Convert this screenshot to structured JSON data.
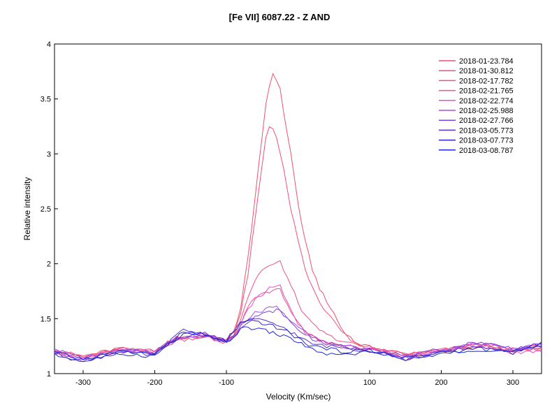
{
  "chart_data": {
    "type": "line",
    "title": "[Fe VII] 6087.22 - Z AND",
    "xlabel": "Velocity (Km/sec)",
    "ylabel": "Relative intensity",
    "xlim": [
      -340,
      340
    ],
    "ylim": [
      1,
      4
    ],
    "xticks": [
      -300,
      -200,
      -100,
      100,
      200,
      300
    ],
    "yticks": [
      1,
      1.5,
      2,
      2.5,
      3,
      3.5,
      4
    ],
    "ytick_labels": [
      "1",
      "1.5",
      "2",
      "2.5",
      "3",
      "3.5",
      "4"
    ],
    "legend_position": "top-right",
    "grid": false,
    "series": [
      {
        "name": "2018-01-23.784",
        "color": "#f0506e",
        "x": [
          -340,
          -300,
          -250,
          -200,
          -170,
          -130,
          -110,
          -100,
          -90,
          -80,
          -70,
          -60,
          -50,
          -45,
          -40,
          -35,
          -30,
          -25,
          -20,
          -10,
          0,
          10,
          20,
          30,
          40,
          50,
          60,
          80,
          100,
          120,
          150,
          200,
          250,
          300,
          340
        ],
        "y": [
          1.2,
          1.15,
          1.22,
          1.2,
          1.32,
          1.35,
          1.32,
          1.3,
          1.38,
          1.6,
          2.05,
          2.6,
          3.15,
          3.45,
          3.62,
          3.73,
          3.68,
          3.58,
          3.38,
          3.0,
          2.55,
          2.2,
          1.95,
          1.78,
          1.65,
          1.55,
          1.42,
          1.28,
          1.24,
          1.22,
          1.18,
          1.22,
          1.24,
          1.22,
          1.25
        ]
      },
      {
        "name": "2018-01-30.812",
        "color": "#f05078",
        "x": [
          -340,
          -300,
          -250,
          -200,
          -170,
          -130,
          -110,
          -100,
          -90,
          -80,
          -70,
          -60,
          -50,
          -45,
          -40,
          -35,
          -30,
          -25,
          -20,
          -10,
          0,
          10,
          20,
          30,
          40,
          50,
          60,
          80,
          100,
          120,
          150,
          200,
          250,
          300,
          340
        ],
        "y": [
          1.21,
          1.16,
          1.23,
          1.19,
          1.3,
          1.34,
          1.31,
          1.31,
          1.36,
          1.55,
          1.9,
          2.4,
          2.9,
          3.15,
          3.25,
          3.24,
          3.15,
          3.0,
          2.85,
          2.5,
          2.2,
          1.95,
          1.78,
          1.65,
          1.55,
          1.48,
          1.38,
          1.27,
          1.23,
          1.21,
          1.17,
          1.21,
          1.25,
          1.21,
          1.24
        ]
      },
      {
        "name": "2018-02-17.782",
        "color": "#f05082",
        "x": [
          -340,
          -300,
          -250,
          -200,
          -170,
          -130,
          -110,
          -100,
          -90,
          -80,
          -70,
          -60,
          -50,
          -40,
          -30,
          -25,
          -20,
          -10,
          0,
          10,
          20,
          30,
          40,
          60,
          80,
          100,
          120,
          150,
          200,
          250,
          300,
          340
        ],
        "y": [
          1.22,
          1.14,
          1.24,
          1.21,
          1.33,
          1.33,
          1.3,
          1.29,
          1.35,
          1.5,
          1.7,
          1.85,
          1.95,
          1.98,
          2.0,
          2.02,
          1.95,
          1.8,
          1.65,
          1.52,
          1.45,
          1.4,
          1.35,
          1.3,
          1.26,
          1.24,
          1.22,
          1.16,
          1.2,
          1.28,
          1.22,
          1.23
        ]
      },
      {
        "name": "2018-02-21.765",
        "color": "#f0508c",
        "x": [
          -340,
          -300,
          -250,
          -200,
          -170,
          -130,
          -110,
          -100,
          -90,
          -80,
          -70,
          -60,
          -50,
          -40,
          -30,
          -25,
          -20,
          -10,
          0,
          10,
          20,
          30,
          40,
          60,
          80,
          100,
          120,
          150,
          200,
          250,
          300,
          340
        ],
        "y": [
          1.19,
          1.15,
          1.21,
          1.18,
          1.31,
          1.36,
          1.29,
          1.28,
          1.34,
          1.45,
          1.6,
          1.7,
          1.72,
          1.75,
          1.78,
          1.77,
          1.7,
          1.55,
          1.45,
          1.38,
          1.34,
          1.3,
          1.28,
          1.26,
          1.24,
          1.23,
          1.21,
          1.15,
          1.22,
          1.26,
          1.2,
          1.22
        ]
      },
      {
        "name": "2018-02-22.774",
        "color": "#e650c8",
        "x": [
          -340,
          -300,
          -250,
          -200,
          -170,
          -130,
          -110,
          -100,
          -90,
          -80,
          -70,
          -60,
          -50,
          -40,
          -30,
          -25,
          -20,
          -10,
          0,
          10,
          20,
          30,
          40,
          60,
          80,
          100,
          120,
          150,
          200,
          250,
          300,
          340
        ],
        "y": [
          1.2,
          1.13,
          1.22,
          1.2,
          1.3,
          1.35,
          1.31,
          1.3,
          1.33,
          1.45,
          1.58,
          1.68,
          1.72,
          1.78,
          1.8,
          1.81,
          1.72,
          1.58,
          1.48,
          1.4,
          1.34,
          1.3,
          1.27,
          1.25,
          1.23,
          1.22,
          1.2,
          1.14,
          1.21,
          1.27,
          1.19,
          1.21
        ]
      },
      {
        "name": "2018-02-25.988",
        "color": "#a050e6",
        "x": [
          -340,
          -300,
          -250,
          -200,
          -170,
          -130,
          -110,
          -100,
          -90,
          -80,
          -70,
          -60,
          -50,
          -40,
          -30,
          -20,
          -10,
          0,
          10,
          20,
          30,
          40,
          60,
          80,
          100,
          120,
          150,
          200,
          250,
          300,
          340
        ],
        "y": [
          1.21,
          1.12,
          1.2,
          1.19,
          1.32,
          1.34,
          1.3,
          1.29,
          1.33,
          1.42,
          1.5,
          1.55,
          1.57,
          1.6,
          1.6,
          1.55,
          1.48,
          1.42,
          1.38,
          1.34,
          1.3,
          1.28,
          1.26,
          1.24,
          1.22,
          1.21,
          1.15,
          1.2,
          1.28,
          1.22,
          1.27
        ]
      },
      {
        "name": "2018-02-27.766",
        "color": "#8040dc",
        "x": [
          -340,
          -300,
          -250,
          -200,
          -170,
          -130,
          -110,
          -100,
          -90,
          -80,
          -70,
          -60,
          -50,
          -40,
          -30,
          -20,
          -10,
          0,
          10,
          20,
          30,
          40,
          60,
          80,
          100,
          120,
          150,
          200,
          250,
          300,
          340
        ],
        "y": [
          1.22,
          1.14,
          1.21,
          1.2,
          1.33,
          1.37,
          1.31,
          1.3,
          1.34,
          1.42,
          1.48,
          1.52,
          1.54,
          1.56,
          1.58,
          1.54,
          1.46,
          1.4,
          1.36,
          1.32,
          1.29,
          1.27,
          1.25,
          1.23,
          1.21,
          1.2,
          1.16,
          1.21,
          1.29,
          1.23,
          1.26
        ]
      },
      {
        "name": "2018-03-05.773",
        "color": "#5a32c8",
        "x": [
          -340,
          -300,
          -250,
          -200,
          -160,
          -130,
          -110,
          -100,
          -90,
          -80,
          -70,
          -60,
          -50,
          -40,
          -30,
          -20,
          -10,
          0,
          10,
          20,
          40,
          60,
          80,
          100,
          120,
          150,
          200,
          250,
          300,
          340
        ],
        "y": [
          1.18,
          1.12,
          1.19,
          1.17,
          1.4,
          1.36,
          1.32,
          1.31,
          1.38,
          1.46,
          1.49,
          1.5,
          1.48,
          1.46,
          1.44,
          1.42,
          1.38,
          1.34,
          1.3,
          1.27,
          1.25,
          1.24,
          1.22,
          1.21,
          1.19,
          1.13,
          1.19,
          1.25,
          1.2,
          1.28
        ]
      },
      {
        "name": "2018-03-07.773",
        "color": "#2828c8",
        "x": [
          -340,
          -300,
          -250,
          -200,
          -160,
          -130,
          -110,
          -100,
          -90,
          -80,
          -70,
          -60,
          -50,
          -40,
          -30,
          -20,
          -10,
          0,
          10,
          20,
          40,
          60,
          80,
          100,
          120,
          150,
          200,
          250,
          300,
          340
        ],
        "y": [
          1.17,
          1.11,
          1.18,
          1.16,
          1.38,
          1.35,
          1.31,
          1.3,
          1.37,
          1.45,
          1.47,
          1.48,
          1.46,
          1.44,
          1.42,
          1.4,
          1.36,
          1.32,
          1.28,
          1.25,
          1.23,
          1.2,
          1.21,
          1.2,
          1.18,
          1.12,
          1.18,
          1.23,
          1.19,
          1.26
        ]
      },
      {
        "name": "2018-03-08.787",
        "color": "#1e28dc",
        "x": [
          -340,
          -300,
          -250,
          -200,
          -160,
          -130,
          -110,
          -100,
          -90,
          -80,
          -70,
          -60,
          -50,
          -40,
          -30,
          -20,
          -10,
          0,
          10,
          20,
          40,
          60,
          80,
          100,
          120,
          150,
          200,
          250,
          300,
          340
        ],
        "y": [
          1.19,
          1.13,
          1.2,
          1.18,
          1.36,
          1.34,
          1.3,
          1.29,
          1.33,
          1.4,
          1.42,
          1.41,
          1.4,
          1.38,
          1.36,
          1.34,
          1.32,
          1.29,
          1.25,
          1.22,
          1.18,
          1.16,
          1.18,
          1.21,
          1.19,
          1.14,
          1.19,
          1.22,
          1.2,
          1.24
        ]
      }
    ]
  }
}
